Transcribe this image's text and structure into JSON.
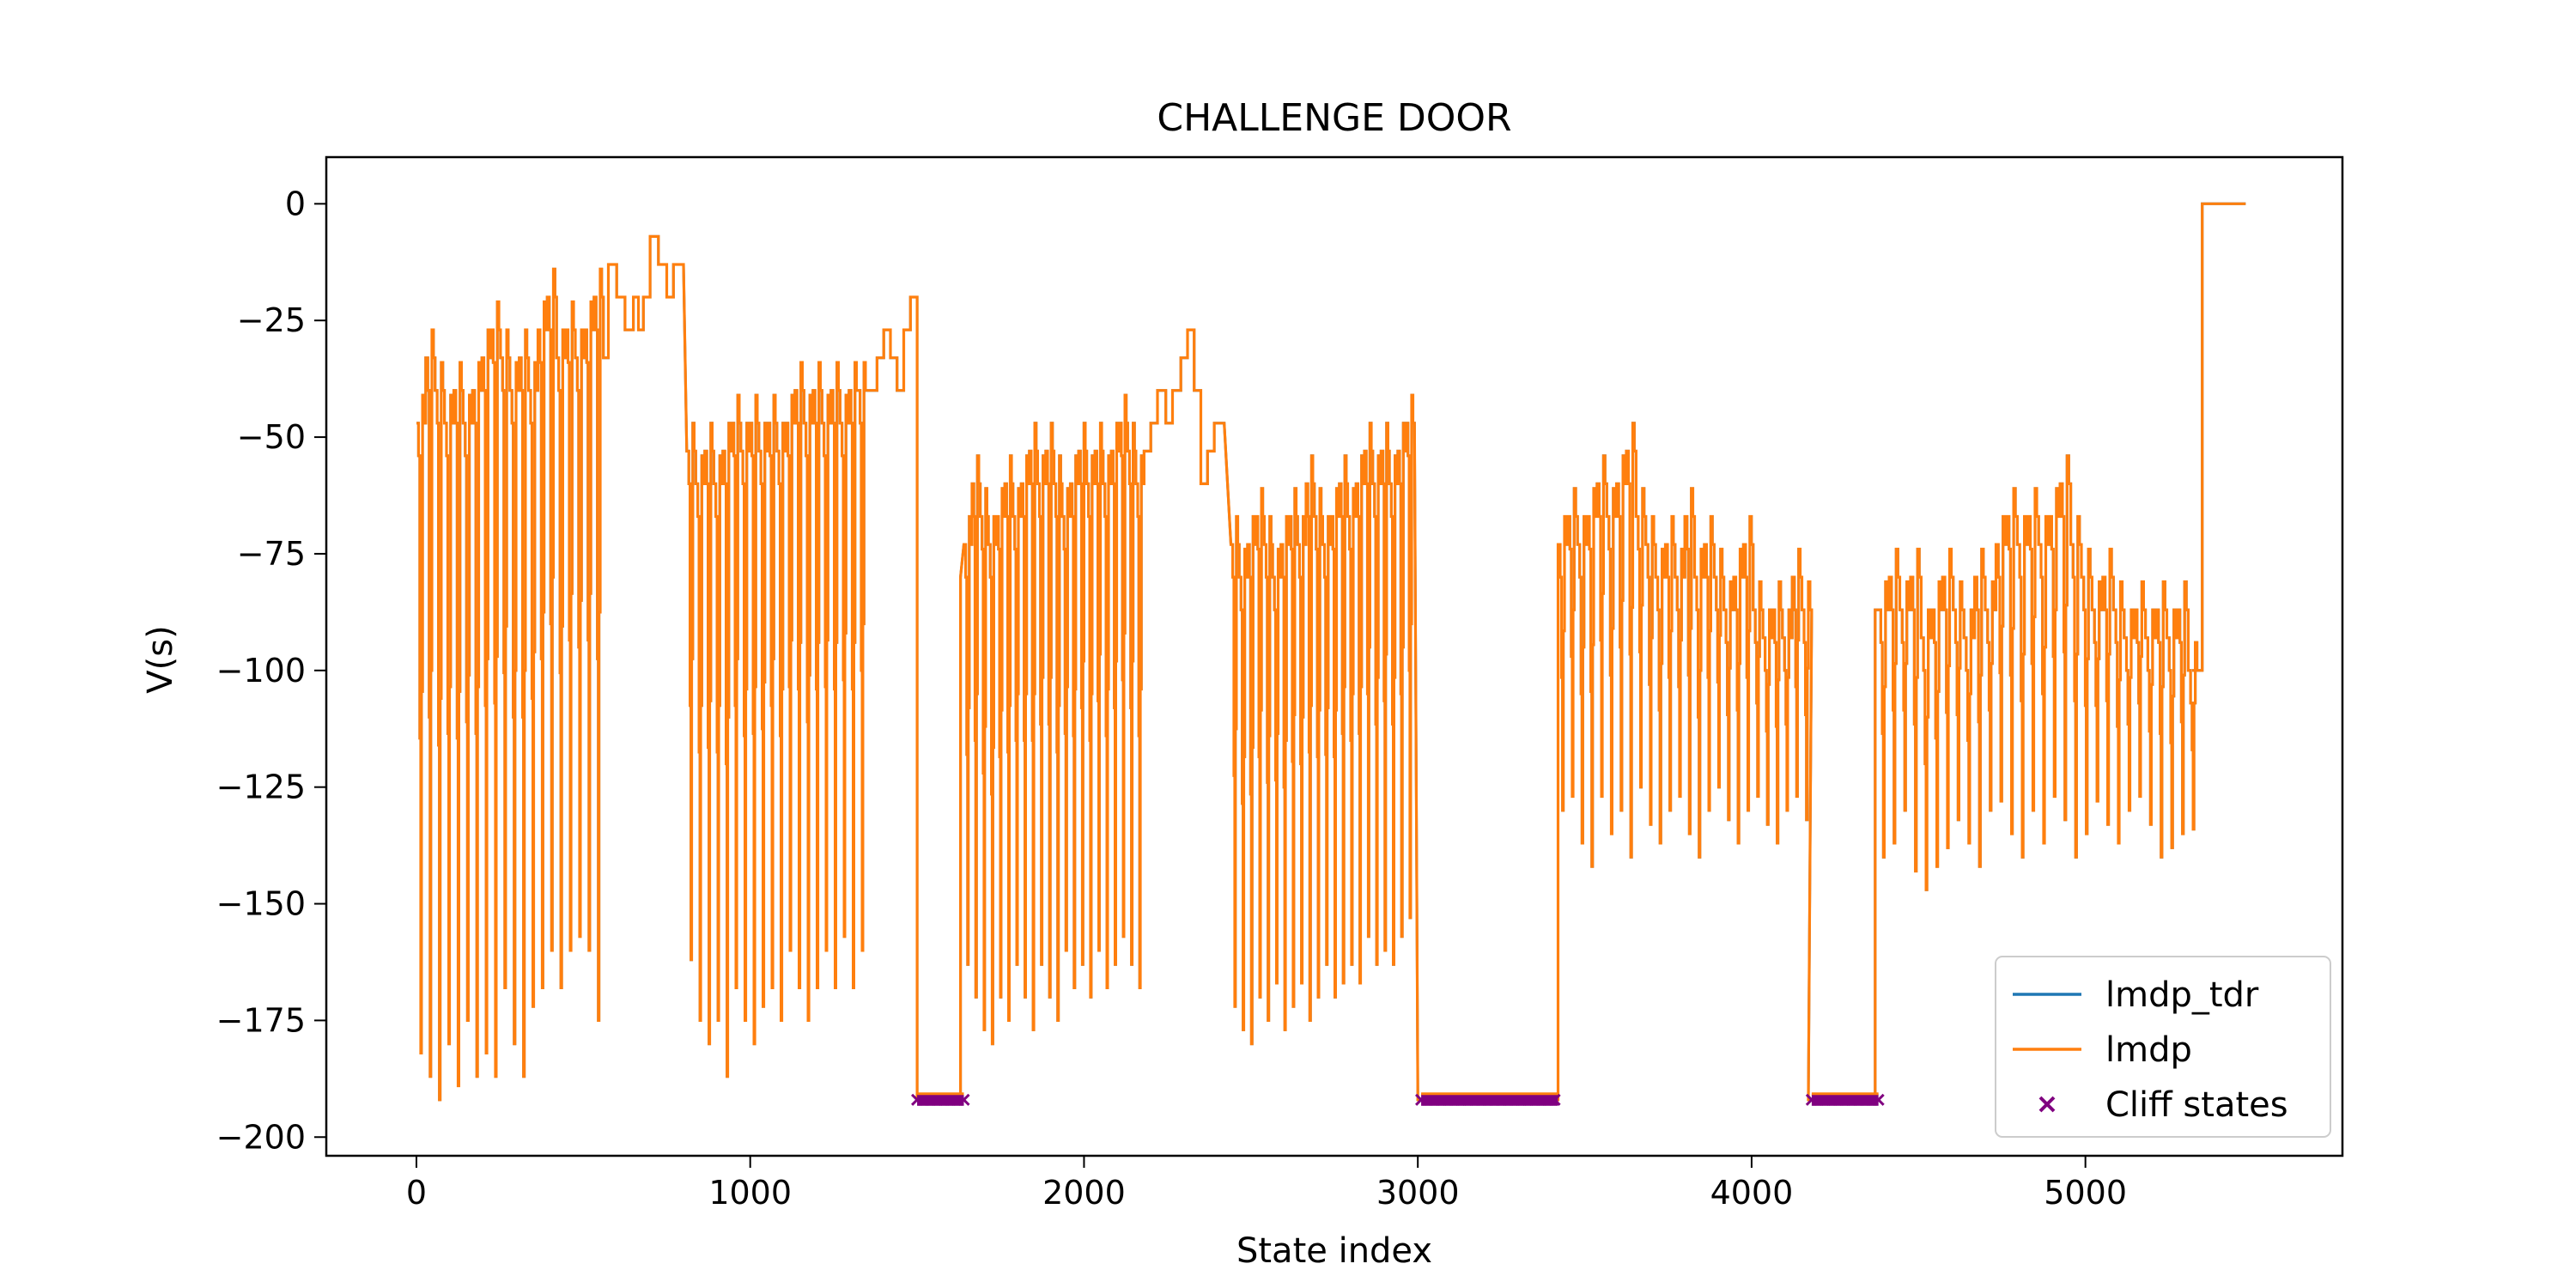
{
  "chart_data": {
    "type": "line",
    "title": "CHALLENGE DOOR",
    "xlabel": "State index",
    "ylabel": "V(s)",
    "xlim": [
      -270,
      5770
    ],
    "ylim": [
      -204,
      10
    ],
    "xticks": [
      0,
      1000,
      2000,
      3000,
      4000,
      5000
    ],
    "xtick_labels": [
      "0",
      "1000",
      "2000",
      "3000",
      "4000",
      "5000"
    ],
    "yticks": [
      0,
      -25,
      -50,
      -75,
      -100,
      -125,
      -150,
      -175,
      -200
    ],
    "ytick_labels": [
      "0",
      "−25",
      "−50",
      "−75",
      "−100",
      "−125",
      "−150",
      "−175",
      "−200"
    ],
    "grid": false,
    "legend_position": "lower-right",
    "series": [
      {
        "name": "lmdp_tdr",
        "color": "#1f77b4",
        "style": "line",
        "hidden_under_next": true,
        "segments": [
          {
            "x_start": 0,
            "x_end": 560,
            "cycles": 20,
            "tops": [
              -47,
              -33,
              -40,
              -47,
              -40,
              -47,
              -40,
              -33,
              -27,
              -33,
              -40,
              -33,
              -40,
              -27,
              -20,
              -33,
              -27,
              -33,
              -27,
              -20
            ],
            "bottoms": [
              -182,
              -187,
              -192,
              -180,
              -189,
              -175,
              -187,
              -182,
              -187,
              -168,
              -180,
              -187,
              -172,
              -168,
              -160,
              -168,
              -160,
              -157,
              -160,
              -175
            ]
          },
          {
            "x_start": 560,
            "x_end": 800,
            "steps": [
              [
                560,
                -33
              ],
              [
                575,
                -13
              ],
              [
                600,
                -20
              ],
              [
                625,
                -27
              ],
              [
                650,
                -20
              ],
              [
                665,
                -27
              ],
              [
                680,
                -20
              ],
              [
                700,
                -7
              ],
              [
                725,
                -13
              ],
              [
                750,
                -20
              ],
              [
                770,
                -13
              ],
              [
                800,
                -13
              ]
            ]
          },
          {
            "x_start": 810,
            "x_end": 1350,
            "cycles": 20,
            "tops": [
              -53,
              -60,
              -53,
              -60,
              -53,
              -47,
              -53,
              -47,
              -53,
              -47,
              -53,
              -47,
              -40,
              -47,
              -40,
              -47,
              -40,
              -47,
              -40,
              -40
            ],
            "bottoms": [
              -162,
              -175,
              -180,
              -175,
              -187,
              -168,
              -175,
              -180,
              -172,
              -168,
              -175,
              -160,
              -168,
              -175,
              -168,
              -160,
              -168,
              -157,
              -168,
              -160
            ]
          },
          {
            "x_start": 1350,
            "x_end": 1500,
            "steps": [
              [
                1350,
                -40
              ],
              [
                1380,
                -33
              ],
              [
                1400,
                -27
              ],
              [
                1420,
                -33
              ],
              [
                1440,
                -40
              ],
              [
                1460,
                -27
              ],
              [
                1480,
                -20
              ],
              [
                1500,
                -20
              ]
            ]
          },
          {
            "x_start": 1640,
            "x_end": 2180,
            "cycles": 22,
            "tops": [
              -73,
              -60,
              -67,
              -73,
              -67,
              -60,
              -67,
              -60,
              -53,
              -60,
              -53,
              -60,
              -67,
              -60,
              -53,
              -60,
              -53,
              -60,
              -53,
              -47,
              -53,
              -60
            ],
            "bottoms": [
              -163,
              -170,
              -177,
              -180,
              -170,
              -175,
              -163,
              -170,
              -177,
              -163,
              -170,
              -175,
              -160,
              -168,
              -163,
              -170,
              -160,
              -168,
              -163,
              -157,
              -163,
              -168
            ]
          },
          {
            "x_start": 2180,
            "x_end": 2420,
            "steps": [
              [
                2180,
                -53
              ],
              [
                2200,
                -47
              ],
              [
                2220,
                -40
              ],
              [
                2245,
                -47
              ],
              [
                2265,
                -40
              ],
              [
                2290,
                -33
              ],
              [
                2310,
                -27
              ],
              [
                2330,
                -40
              ],
              [
                2350,
                -60
              ],
              [
                2370,
                -53
              ],
              [
                2390,
                -47
              ],
              [
                2420,
                -47
              ]
            ]
          },
          {
            "x_start": 2440,
            "x_end": 2990,
            "cycles": 22,
            "tops": [
              -73,
              -80,
              -73,
              -67,
              -73,
              -80,
              -73,
              -67,
              -73,
              -60,
              -67,
              -73,
              -67,
              -60,
              -67,
              -60,
              -53,
              -60,
              -53,
              -60,
              -53,
              -47
            ],
            "bottoms": [
              -172,
              -177,
              -180,
              -170,
              -175,
              -167,
              -177,
              -172,
              -167,
              -175,
              -170,
              -163,
              -170,
              -167,
              -163,
              -167,
              -157,
              -163,
              -160,
              -163,
              -157,
              -153
            ]
          },
          {
            "x_start": 3420,
            "x_end": 4180,
            "cycles": 26,
            "tops": [
              -73,
              -67,
              -73,
              -67,
              -60,
              -67,
              -60,
              -53,
              -67,
              -73,
              -80,
              -73,
              -80,
              -67,
              -80,
              -73,
              -80,
              -87,
              -80,
              -73,
              -87,
              -93,
              -87,
              -93,
              -80,
              -87
            ],
            "bottoms": [
              -130,
              -127,
              -137,
              -142,
              -127,
              -135,
              -130,
              -140,
              -125,
              -133,
              -137,
              -130,
              -127,
              -135,
              -140,
              -130,
              -125,
              -132,
              -137,
              -130,
              -127,
              -133,
              -137,
              -130,
              -127,
              -132
            ]
          },
          {
            "x_start": 4380,
            "x_end": 5340,
            "cycles": 30,
            "tops": [
              -87,
              -80,
              -87,
              -80,
              -93,
              -87,
              -80,
              -87,
              -93,
              -80,
              -87,
              -73,
              -67,
              -73,
              -67,
              -73,
              -67,
              -60,
              -73,
              -80,
              -87,
              -80,
              -87,
              -93,
              -87,
              -93,
              -87,
              -93,
              -87,
              -100
            ],
            "bottoms": [
              -140,
              -137,
              -130,
              -143,
              -147,
              -142,
              -138,
              -132,
              -137,
              -142,
              -130,
              -128,
              -135,
              -140,
              -130,
              -137,
              -127,
              -132,
              -140,
              -135,
              -128,
              -133,
              -137,
              -130,
              -127,
              -133,
              -140,
              -138,
              -135,
              -134
            ]
          },
          {
            "x_start": 5340,
            "x_end": 5480,
            "steps": [
              [
                5320,
                -100
              ],
              [
                5340,
                -100
              ],
              [
                5350,
                0
              ],
              [
                5480,
                0
              ]
            ]
          }
        ],
        "drops": [
          {
            "from_x": 1500,
            "to_x": 1520,
            "floor": -192,
            "rise_x": 1630,
            "rise_to": -80
          },
          {
            "from_x": 3000,
            "to_x": 3010,
            "floor": -192,
            "rise_x": 3420,
            "rise_to": -73
          },
          {
            "from_x": 4170,
            "to_x": 4180,
            "floor": -192,
            "rise_x": 4370,
            "rise_to": -87
          }
        ]
      },
      {
        "name": "lmdp",
        "color": "#ff7f0e",
        "style": "line",
        "same_as": "lmdp_tdr"
      },
      {
        "name": "Cliff states",
        "color": "#800080",
        "style": "marker",
        "marker": "x",
        "y": -192,
        "x_ranges": [
          [
            1500,
            1640
          ],
          [
            3010,
            3420
          ],
          [
            4180,
            4380
          ]
        ]
      }
    ]
  }
}
